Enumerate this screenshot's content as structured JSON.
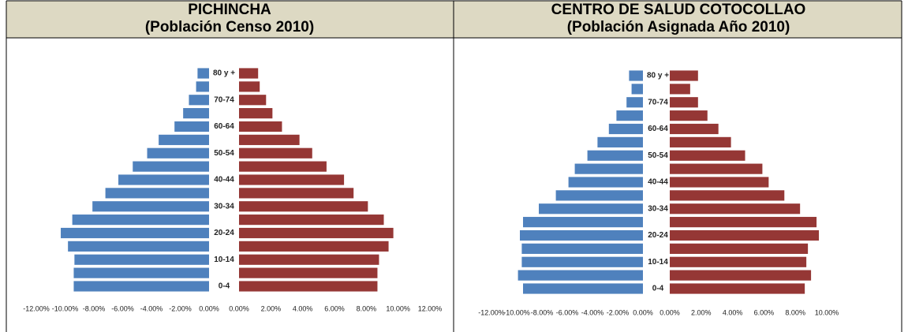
{
  "chart_data": [
    {
      "type": "pyramid",
      "title": "PICHINCHA",
      "subtitle": "(Población Censo 2010)",
      "categories": [
        "0-4",
        null,
        "10-14",
        null,
        "20-24",
        null,
        "30-34",
        null,
        "40-44",
        null,
        "50-54",
        null,
        "60-64",
        null,
        "70-74",
        null,
        "80 y +"
      ],
      "series": [
        {
          "color": "#4f81bd",
          "values": [
            -9.4,
            -9.4,
            -9.35,
            -9.8,
            -10.3,
            -9.5,
            -8.1,
            -7.2,
            -6.3,
            -5.3,
            -4.3,
            -3.5,
            -2.4,
            -1.8,
            -1.4,
            -0.9,
            -0.8
          ]
        },
        {
          "color": "#953735",
          "axis": "x2",
          "values": [
            8.7,
            8.7,
            8.8,
            9.4,
            9.7,
            9.1,
            8.1,
            7.2,
            6.6,
            5.5,
            4.6,
            3.8,
            2.7,
            2.1,
            1.7,
            1.3,
            1.2
          ]
        }
      ],
      "xlim": [
        -12,
        0
      ],
      "xticks": [
        {
          "value": -12,
          "label": "-12.00%"
        },
        {
          "value": -10,
          "label": "-10.00%"
        },
        {
          "value": -8,
          "label": "-8.00%"
        },
        {
          "value": -6,
          "label": "-6.00%"
        },
        {
          "value": -4,
          "label": "-4.00%"
        },
        {
          "value": -2,
          "label": "-2.00%"
        },
        {
          "value": 0,
          "label": "0.00%"
        }
      ],
      "x2lim": [
        0,
        12
      ],
      "x2ticks": [
        {
          "value": 0,
          "label": "0.00%"
        },
        {
          "value": 2,
          "label": "2.00%"
        },
        {
          "value": 4,
          "label": "4.00%"
        },
        {
          "value": 6,
          "label": "6.00%"
        },
        {
          "value": 8,
          "label": "8.00%"
        },
        {
          "value": 10,
          "label": "10.00%"
        },
        {
          "value": 12,
          "label": "12.00%"
        }
      ]
    },
    {
      "type": "pyramid",
      "title": "CENTRO DE SALUD COTOCOLLAO",
      "subtitle": "(Población Asignada Año 2010)",
      "categories": [
        "0-4",
        null,
        "10-14",
        null,
        "20-24",
        null,
        "30-34",
        null,
        "40-44",
        null,
        "50-54",
        null,
        "60-64",
        null,
        "70-74",
        null,
        "80 y +"
      ],
      "series": [
        {
          "color": "#4f81bd",
          "values": [
            -9.5,
            -9.9,
            -9.6,
            -9.6,
            -9.75,
            -9.5,
            -8.25,
            -6.9,
            -5.9,
            -5.4,
            -4.4,
            -3.6,
            -2.7,
            -2.1,
            -1.3,
            -0.9,
            -1.1
          ]
        },
        {
          "color": "#953735",
          "axis": "x2",
          "values": [
            8.6,
            9.0,
            8.7,
            8.8,
            9.5,
            9.35,
            8.3,
            7.3,
            6.3,
            5.9,
            4.8,
            3.9,
            3.1,
            2.4,
            1.8,
            1.3,
            1.8
          ]
        }
      ],
      "xlim": [
        -12,
        0
      ],
      "xticks": [
        {
          "value": -12,
          "label": "-12.00%"
        },
        {
          "value": -10,
          "label": "-10.00%"
        },
        {
          "value": -8,
          "label": "-8.00%"
        },
        {
          "value": -6,
          "label": "-6.00%"
        },
        {
          "value": -4,
          "label": "-4.00%"
        },
        {
          "value": -2,
          "label": "-2.00%"
        },
        {
          "value": 0,
          "label": "0.00%"
        }
      ],
      "x2lim": [
        0,
        10
      ],
      "x2ticks": [
        {
          "value": 0,
          "label": "0.00%"
        },
        {
          "value": 2,
          "label": "2.00%"
        },
        {
          "value": 4,
          "label": "4.00%"
        },
        {
          "value": 6,
          "label": "6.00%"
        },
        {
          "value": 8,
          "label": "8.00%"
        },
        {
          "value": 10,
          "label": "10.00%"
        }
      ]
    }
  ]
}
